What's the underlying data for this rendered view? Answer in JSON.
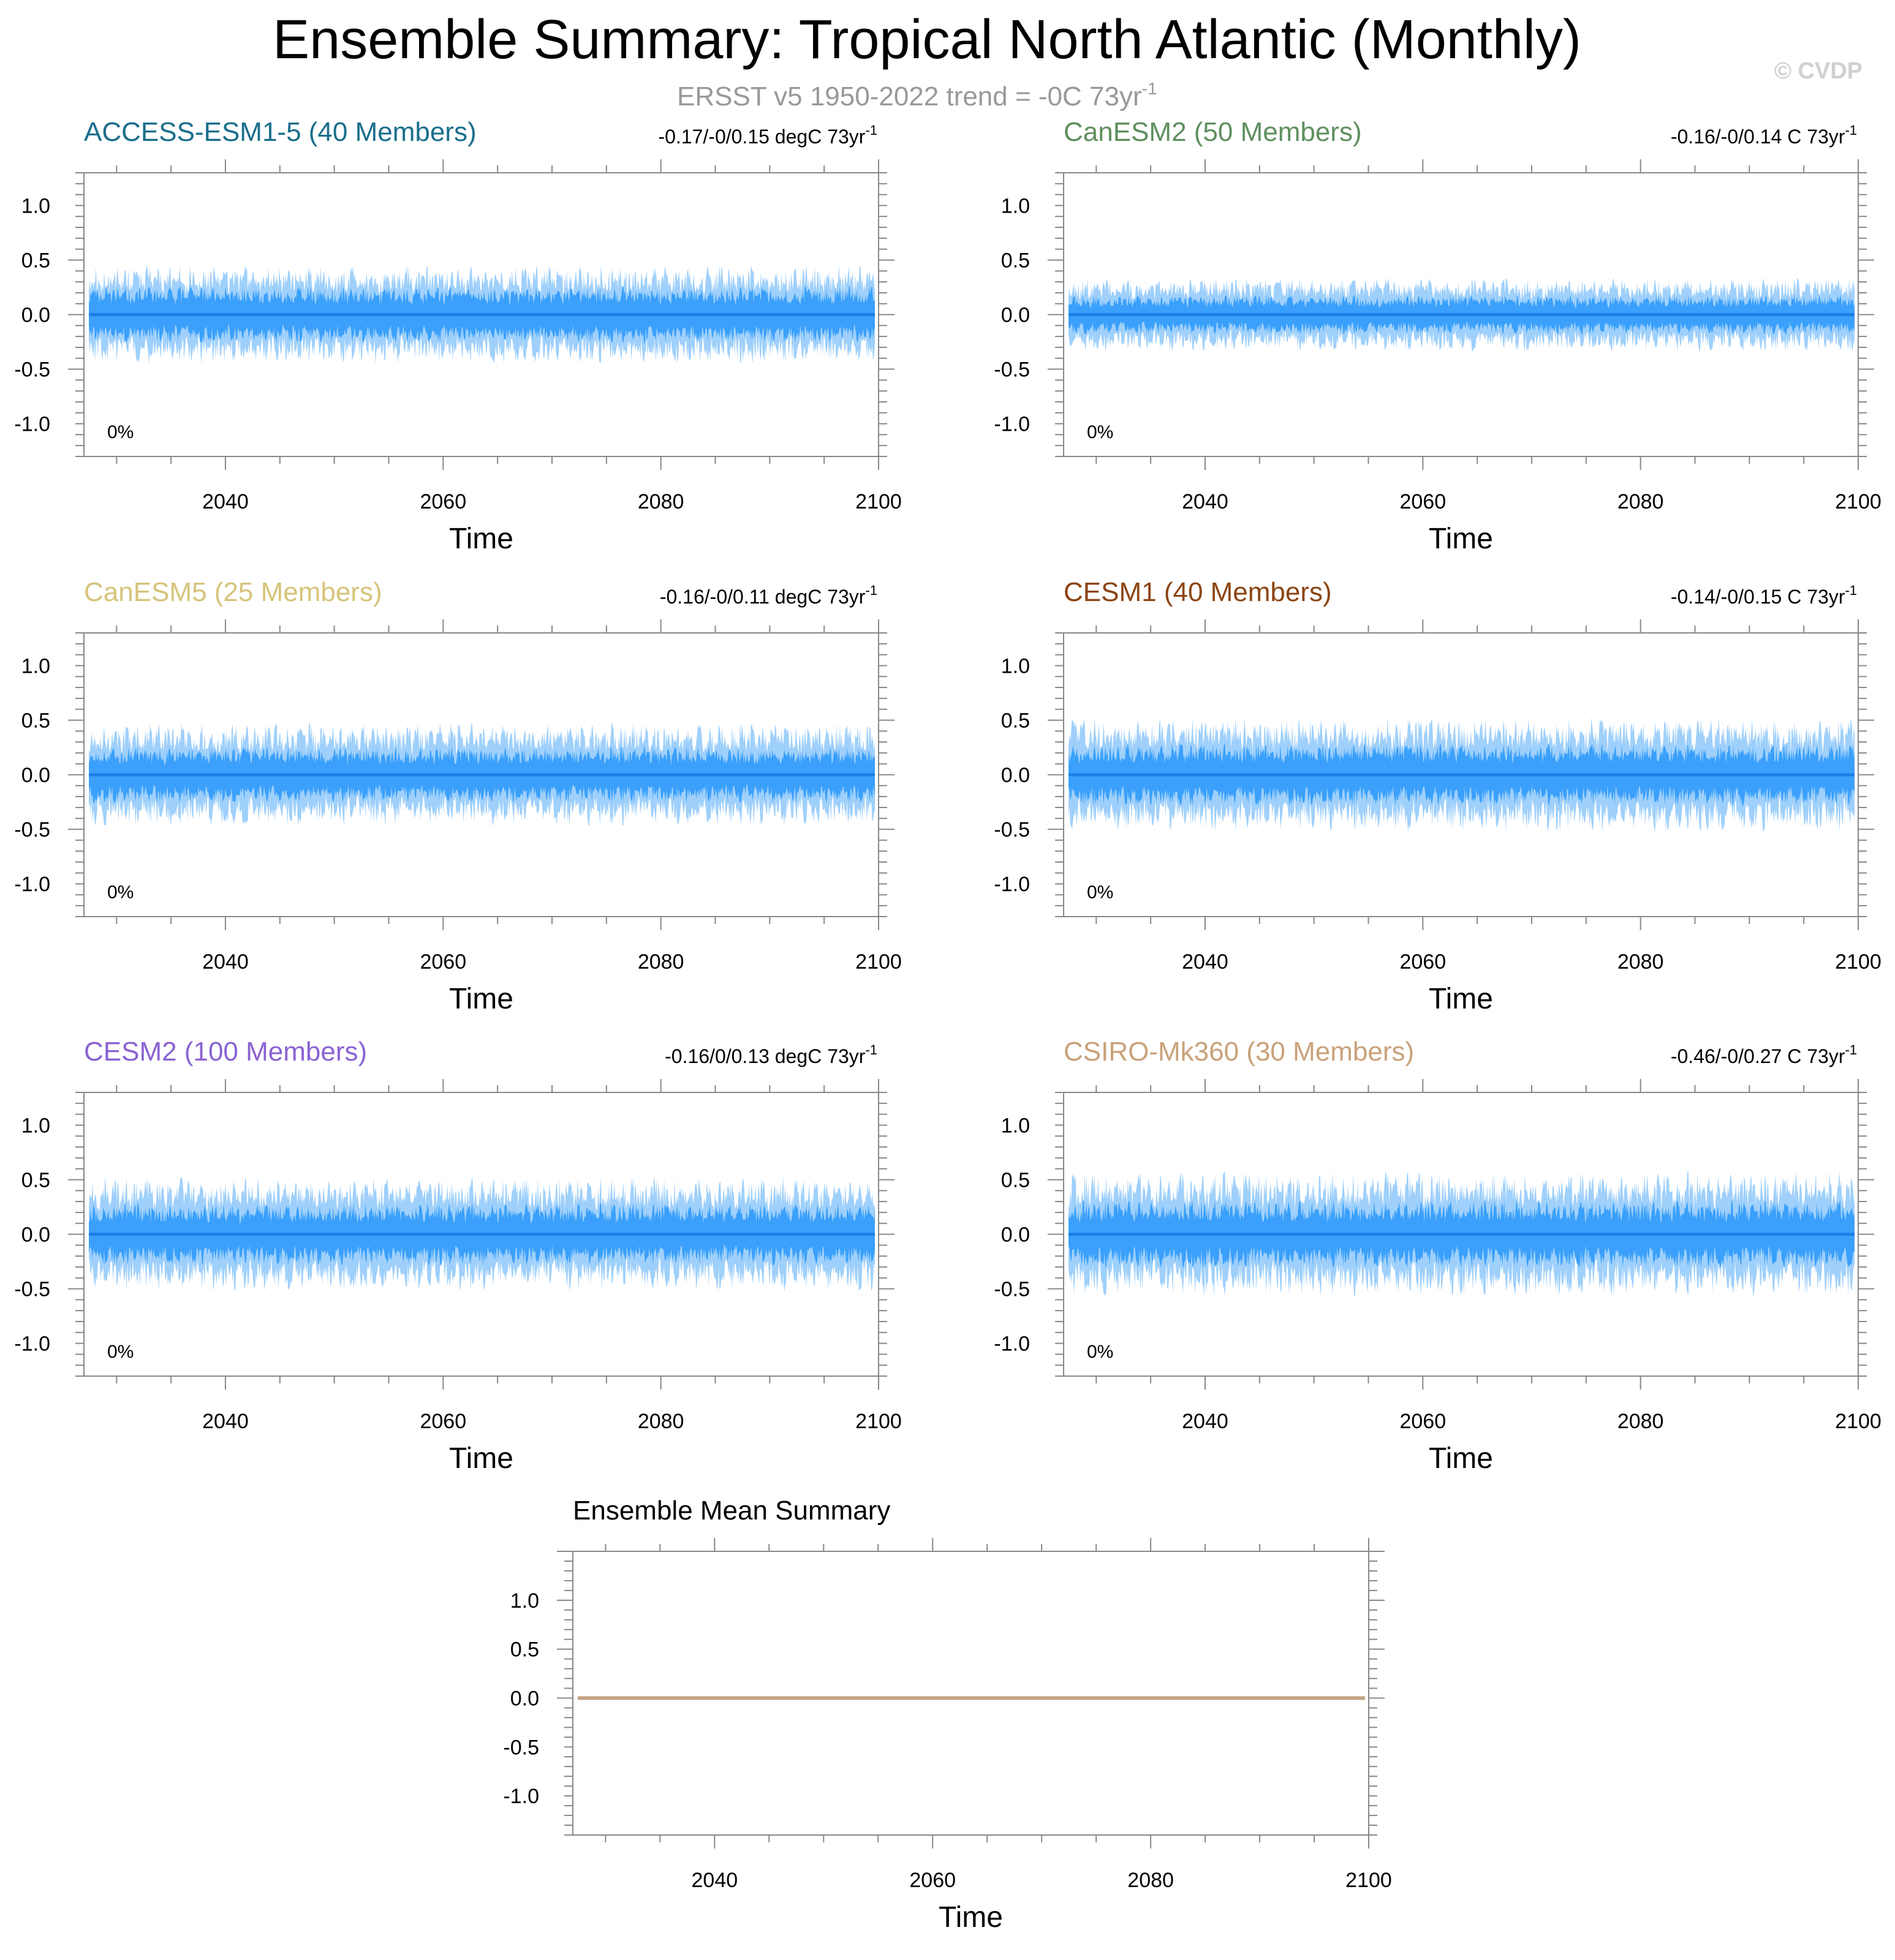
{
  "figure": {
    "title": "Ensemble Summary: Tropical North Atlantic (Monthly)",
    "subtitle_main": "ERSST v5 1950-2022 trend = -0C 73yr",
    "subtitle_sup": "-1",
    "watermark": "© CVDP"
  },
  "colors": {
    "band_outer": "#9fd0fb",
    "band_inner": "#3aa0fb",
    "mean_line": "#1e7ee6",
    "axis": "#888888",
    "ensemble_mean_line": "#c4a484",
    "title": "#000000",
    "subtitle": "#999999",
    "watermark": "#d0d0d0"
  },
  "chart_data": [
    {
      "type": "area",
      "name": "ACCESS-ESM1-5 (40 Members)",
      "title_color": "#1a6e8c",
      "trend_text": "-0.17/-0/0.15 degC 73yr",
      "trend_sup": "-1",
      "percent_label": "0%",
      "xlabel": "Time",
      "x_range": [
        2027,
        2100
      ],
      "ylim": [
        -1.3,
        1.3
      ],
      "x_ticks": [
        2040,
        2060,
        2080,
        2100
      ],
      "y_ticks": [
        "1.0",
        "0.5",
        "0.0",
        "-0.5",
        "-1.0"
      ],
      "y_tick_values": [
        1.0,
        0.5,
        0.0,
        -0.5,
        -1.0
      ],
      "mean_value": 0.0,
      "outer_amp": 0.36,
      "inner_amp": 0.2,
      "seed": 11
    },
    {
      "type": "area",
      "name": "CanESM2 (50 Members)",
      "title_color": "#5f8f5f",
      "trend_text": "-0.16/-0/0.14 C 73yr",
      "trend_sup": "-1",
      "percent_label": "0%",
      "xlabel": "Time",
      "x_range": [
        2027,
        2100
      ],
      "ylim": [
        -1.3,
        1.3
      ],
      "x_ticks": [
        2040,
        2060,
        2080,
        2100
      ],
      "y_ticks": [
        "1.0",
        "0.5",
        "0.0",
        "-0.5",
        "-1.0"
      ],
      "y_tick_values": [
        1.0,
        0.5,
        0.0,
        -0.5,
        -1.0
      ],
      "mean_value": 0.0,
      "outer_amp": 0.27,
      "inner_amp": 0.14,
      "seed": 23
    },
    {
      "type": "area",
      "name": "CanESM5 (25 Members)",
      "title_color": "#d6c47a",
      "trend_text": "-0.16/-0/0.11 degC 73yr",
      "trend_sup": "-1",
      "percent_label": "0%",
      "xlabel": "Time",
      "x_range": [
        2027,
        2100
      ],
      "ylim": [
        -1.3,
        1.3
      ],
      "x_ticks": [
        2040,
        2060,
        2080,
        2100
      ],
      "y_ticks": [
        "1.0",
        "0.5",
        "0.0",
        "-0.5",
        "-1.0"
      ],
      "y_tick_values": [
        1.0,
        0.5,
        0.0,
        -0.5,
        -1.0
      ],
      "mean_value": 0.0,
      "outer_amp": 0.38,
      "inner_amp": 0.2,
      "seed": 37
    },
    {
      "type": "area",
      "name": "CESM1 (40 Members)",
      "title_color": "#8b4513",
      "trend_text": "-0.14/-0/0.15 C 73yr",
      "trend_sup": "-1",
      "percent_label": "0%",
      "xlabel": "Time",
      "x_range": [
        2027,
        2100
      ],
      "ylim": [
        -1.3,
        1.3
      ],
      "x_ticks": [
        2040,
        2060,
        2080,
        2100
      ],
      "y_ticks": [
        "1.0",
        "0.5",
        "0.0",
        "-0.5",
        "-1.0"
      ],
      "y_tick_values": [
        1.0,
        0.5,
        0.0,
        -0.5,
        -1.0
      ],
      "mean_value": 0.0,
      "outer_amp": 0.42,
      "inner_amp": 0.22,
      "seed": 41
    },
    {
      "type": "area",
      "name": "CESM2 (100 Members)",
      "title_color": "#8a63d2",
      "trend_text": "-0.16/0/0.13 degC 73yr",
      "trend_sup": "-1",
      "percent_label": "0%",
      "xlabel": "Time",
      "x_range": [
        2027,
        2100
      ],
      "ylim": [
        -1.3,
        1.3
      ],
      "x_ticks": [
        2040,
        2060,
        2080,
        2100
      ],
      "y_ticks": [
        "1.0",
        "0.5",
        "0.0",
        "-0.5",
        "-1.0"
      ],
      "y_tick_values": [
        1.0,
        0.5,
        0.0,
        -0.5,
        -1.0
      ],
      "mean_value": 0.0,
      "outer_amp": 0.42,
      "inner_amp": 0.22,
      "seed": 53
    },
    {
      "type": "area",
      "name": "CSIRO-Mk360 (30 Members)",
      "title_color": "#c9a27a",
      "trend_text": "-0.46/-0/0.27 C 73yr",
      "trend_sup": "-1",
      "percent_label": "0%",
      "xlabel": "Time",
      "x_range": [
        2027,
        2100
      ],
      "ylim": [
        -1.3,
        1.3
      ],
      "x_ticks": [
        2040,
        2060,
        2080,
        2100
      ],
      "y_ticks": [
        "1.0",
        "0.5",
        "0.0",
        "-0.5",
        "-1.0"
      ],
      "y_tick_values": [
        1.0,
        0.5,
        0.0,
        -0.5,
        -1.0
      ],
      "mean_value": 0.0,
      "outer_amp": 0.46,
      "inner_amp": 0.24,
      "seed": 67
    },
    {
      "type": "line",
      "name": "Ensemble Mean Summary",
      "title_color": "#000000",
      "xlabel": "Time",
      "x_range": [
        2027,
        2100
      ],
      "ylim": [
        -1.4,
        1.5
      ],
      "x_ticks": [
        2040,
        2060,
        2080,
        2100
      ],
      "y_ticks": [
        "1.0",
        "0.5",
        "0.0",
        "-0.5",
        "-1.0"
      ],
      "y_tick_values": [
        1.0,
        0.5,
        0.0,
        -0.5,
        -1.0
      ],
      "series": [
        {
          "x": [
            2027,
            2100
          ],
          "values": [
            0.0,
            0.0
          ]
        }
      ]
    }
  ]
}
